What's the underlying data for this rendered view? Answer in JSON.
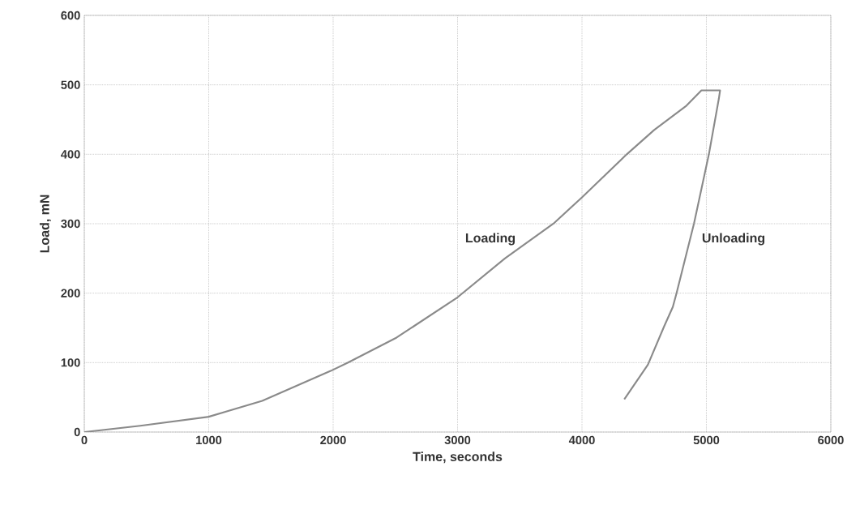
{
  "chart_data": {
    "type": "line",
    "xlabel": "Time, seconds",
    "ylabel": "Load, mN",
    "annotations": [
      "Loading",
      "Unloading"
    ],
    "series": [
      {
        "color": "#8a8a8a",
        "x": [
          0,
          450,
          1000,
          1430,
          1980,
          2120,
          2510,
          3000,
          3380,
          3770,
          4000,
          4360,
          4580,
          4840,
          4960,
          5110,
          5100,
          5020,
          4900,
          4760,
          4730,
          4660,
          4530,
          4340
        ],
        "values": [
          0,
          9,
          22,
          45,
          88,
          100,
          136,
          194,
          250,
          300,
          338,
          400,
          435,
          470,
          492,
          492,
          480,
          400,
          300,
          200,
          180,
          152,
          97,
          47
        ]
      }
    ],
    "xlim": [
      0,
      6000
    ],
    "ylim": [
      0,
      600
    ],
    "xticks": [
      0,
      1000,
      2000,
      3000,
      4000,
      5000,
      6000
    ],
    "yticks": [
      0,
      100,
      200,
      300,
      400,
      500,
      600
    ],
    "grid": true,
    "marker": "none",
    "line_style": "solid"
  }
}
